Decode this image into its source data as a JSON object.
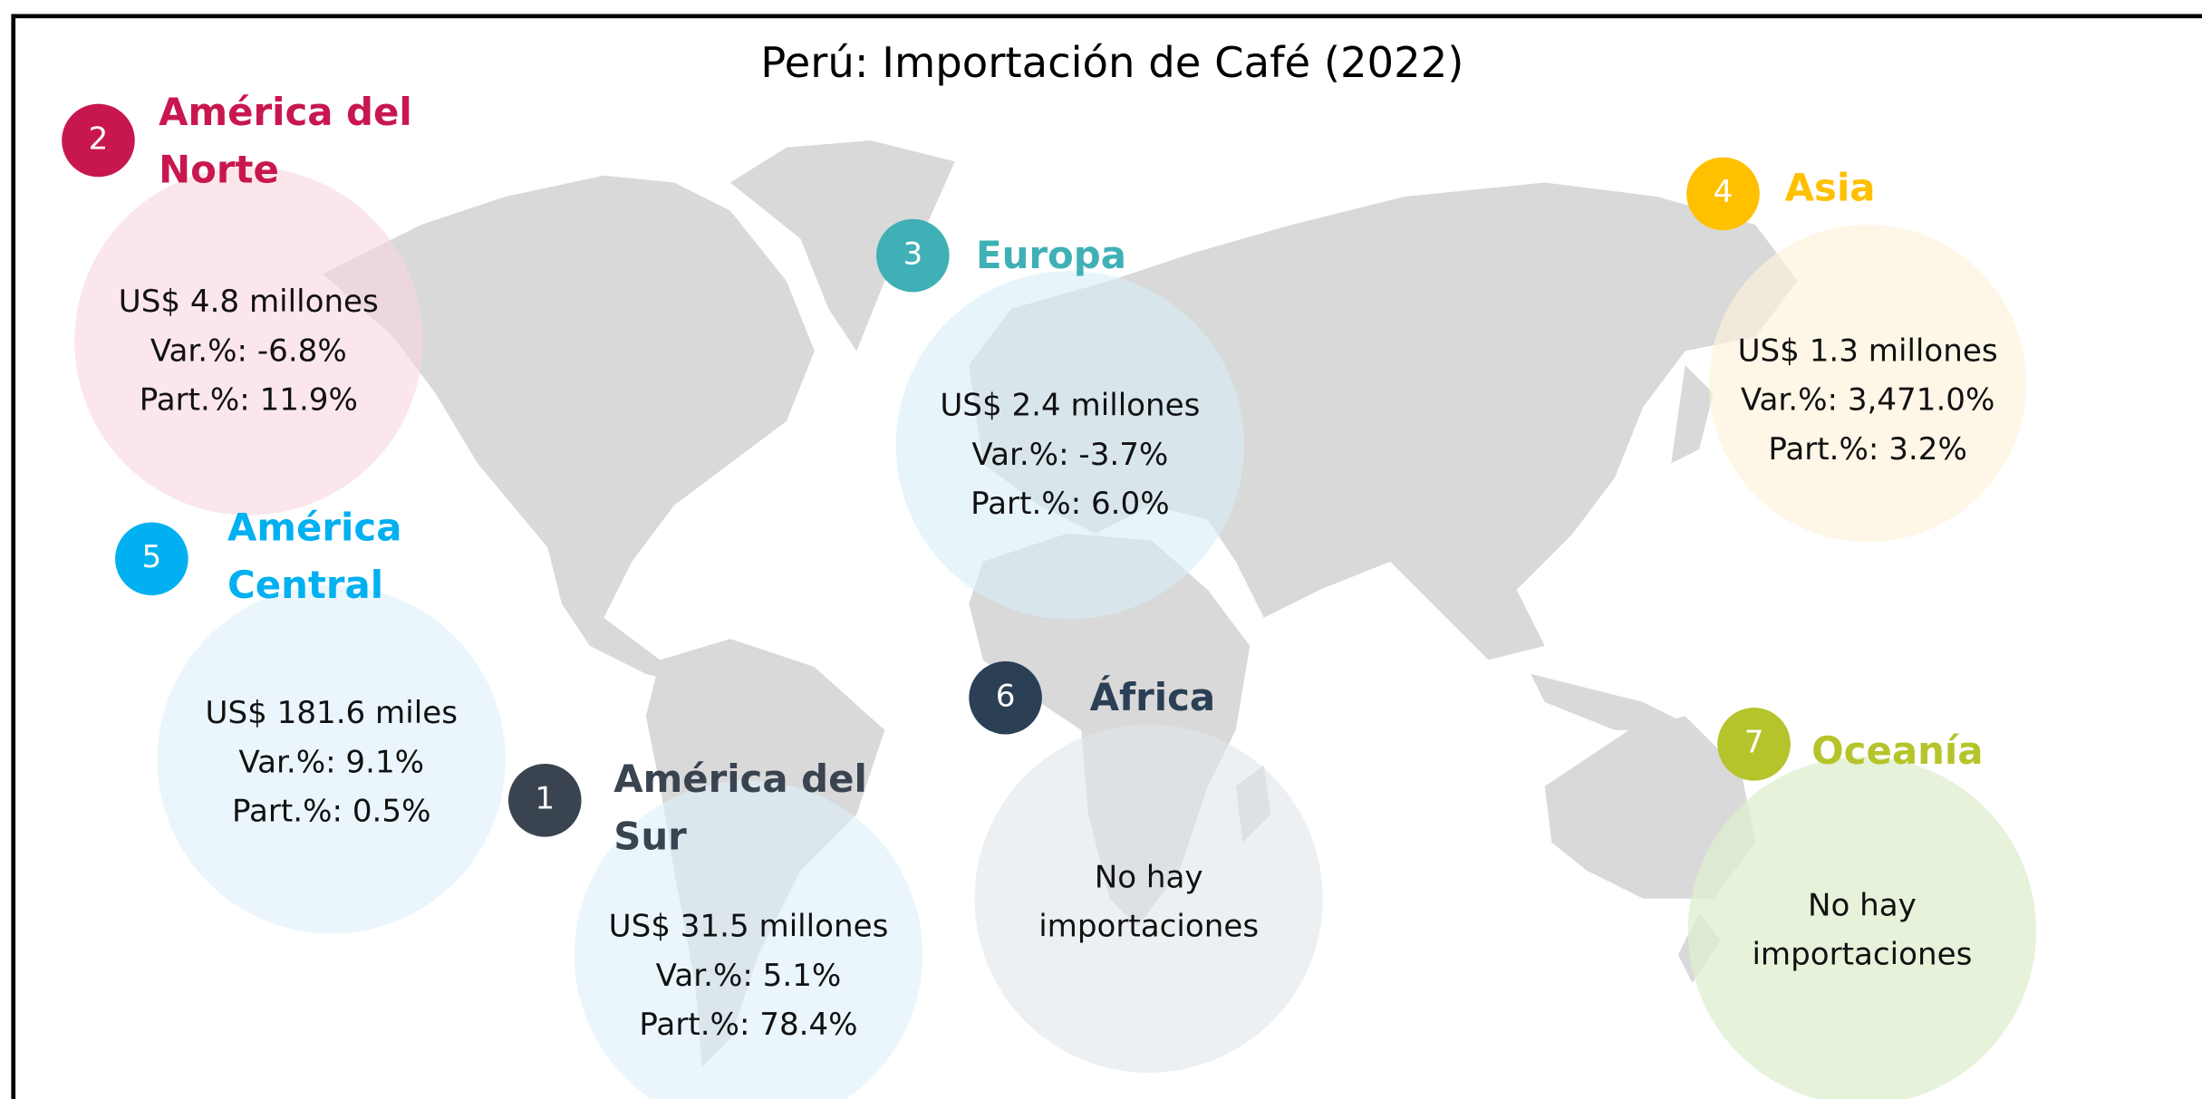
{
  "title": "Perú: Importación de Café (2022)",
  "regions": [
    {
      "rank": "2",
      "name": "América del Norte",
      "lines": [
        "US$ 4.8 millones",
        "Var.%: -6.8%",
        "Part.%: 11.9%"
      ]
    },
    {
      "rank": "5",
      "name": "América Central",
      "lines": [
        "US$ 181.6 miles",
        "Var.%: 9.1%",
        "Part.%: 0.5%"
      ]
    },
    {
      "rank": "1",
      "name": "América del Sur",
      "lines": [
        "US$ 31.5 millones",
        "Var.%: 5.1%",
        "Part.%: 78.4%"
      ]
    },
    {
      "rank": "3",
      "name": "Europa",
      "lines": [
        "US$ 2.4 millones",
        "Var.%: -3.7%",
        "Part.%: 6.0%"
      ]
    },
    {
      "rank": "6",
      "name": "África",
      "lines": [
        "No hay",
        "importaciones"
      ]
    },
    {
      "rank": "4",
      "name": "Asia",
      "lines": [
        "US$ 1.3 millones",
        "Var.%: 3,471.0%",
        "Part.%: 3.2%"
      ]
    },
    {
      "rank": "7",
      "name": "Oceanía",
      "lines": [
        "No hay",
        "importaciones"
      ]
    }
  ]
}
